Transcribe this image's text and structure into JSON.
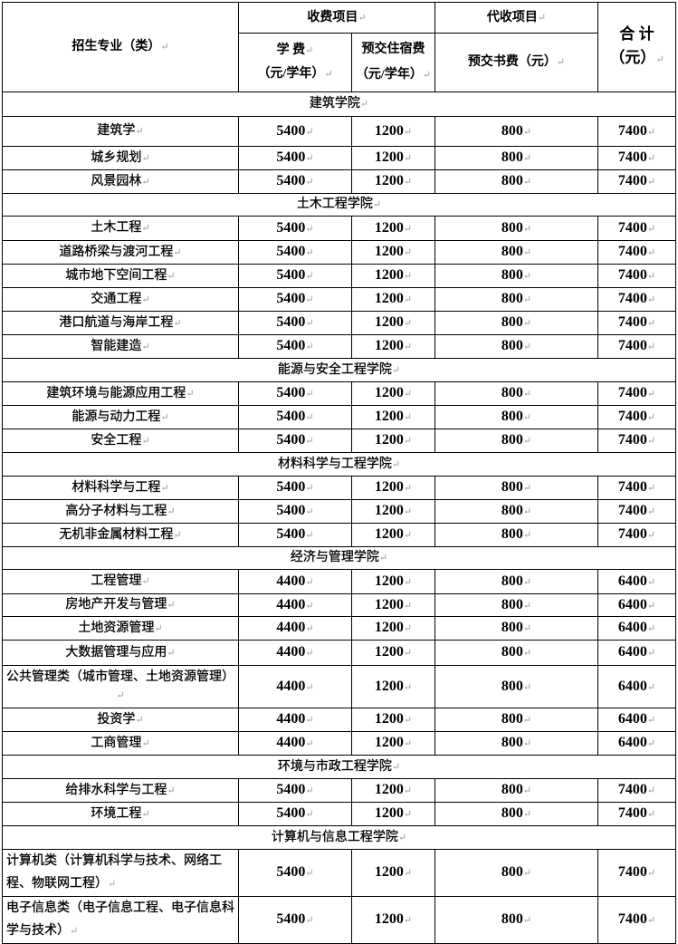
{
  "header": {
    "major": "招生专业（类）",
    "charged_group": "收费项目",
    "collected_group": "代收项目",
    "tuition": "学 费",
    "tuition_unit": "（元/学年）",
    "dorm": "预交住宿费",
    "dorm_unit": "（元/学年）",
    "books": "预交书费（元）",
    "total": "合 计",
    "total_unit": "（元）"
  },
  "sections": [
    {
      "college": "建筑学院",
      "rows": [
        {
          "major": "建筑学",
          "tuition": "5400",
          "dorm": "1200",
          "books": "800",
          "total": "7400"
        },
        {
          "major": "城乡规划",
          "tuition": "5400",
          "dorm": "1200",
          "books": "800",
          "total": "7400"
        },
        {
          "major": "风景园林",
          "tuition": "5400",
          "dorm": "1200",
          "books": "800",
          "total": "7400"
        }
      ]
    },
    {
      "college": "土木工程学院",
      "rows": [
        {
          "major": "土木工程",
          "tuition": "5400",
          "dorm": "1200",
          "books": "800",
          "total": "7400"
        },
        {
          "major": "道路桥梁与渡河工程",
          "tuition": "5400",
          "dorm": "1200",
          "books": "800",
          "total": "7400"
        },
        {
          "major": "城市地下空间工程",
          "tuition": "5400",
          "dorm": "1200",
          "books": "800",
          "total": "7400"
        },
        {
          "major": "交通工程",
          "tuition": "5400",
          "dorm": "1200",
          "books": "800",
          "total": "7400"
        },
        {
          "major": "港口航道与海岸工程",
          "tuition": "5400",
          "dorm": "1200",
          "books": "800",
          "total": "7400"
        },
        {
          "major": "智能建造",
          "tuition": "5400",
          "dorm": "1200",
          "books": "800",
          "total": "7400"
        }
      ]
    },
    {
      "college": "能源与安全工程学院",
      "rows": [
        {
          "major": "建筑环境与能源应用工程",
          "tuition": "5400",
          "dorm": "1200",
          "books": "800",
          "total": "7400"
        },
        {
          "major": "能源与动力工程",
          "tuition": "5400",
          "dorm": "1200",
          "books": "800",
          "total": "7400"
        },
        {
          "major": "安全工程",
          "tuition": "5400",
          "dorm": "1200",
          "books": "800",
          "total": "7400"
        }
      ]
    },
    {
      "college": "材料科学与工程学院",
      "rows": [
        {
          "major": "材料科学与工程",
          "tuition": "5400",
          "dorm": "1200",
          "books": "800",
          "total": "7400"
        },
        {
          "major": "高分子材料与工程",
          "tuition": "5400",
          "dorm": "1200",
          "books": "800",
          "total": "7400"
        },
        {
          "major": "无机非金属材料工程",
          "tuition": "5400",
          "dorm": "1200",
          "books": "800",
          "total": "7400"
        }
      ]
    },
    {
      "college": "经济与管理学院",
      "rows": [
        {
          "major": "工程管理",
          "tuition": "4400",
          "dorm": "1200",
          "books": "800",
          "total": "6400"
        },
        {
          "major": "房地产开发与管理",
          "tuition": "4400",
          "dorm": "1200",
          "books": "800",
          "total": "6400"
        },
        {
          "major": "土地资源管理",
          "tuition": "4400",
          "dorm": "1200",
          "books": "800",
          "total": "6400"
        },
        {
          "major": "大数据管理与应用",
          "tuition": "4400",
          "dorm": "1200",
          "books": "800",
          "total": "6400"
        },
        {
          "major": "公共管理类（城市管理、土地资源管理）",
          "tuition": "4400",
          "dorm": "1200",
          "books": "800",
          "total": "6400"
        },
        {
          "major": "投资学",
          "tuition": "4400",
          "dorm": "1200",
          "books": "800",
          "total": "6400"
        },
        {
          "major": "工商管理",
          "tuition": "4400",
          "dorm": "1200",
          "books": "800",
          "total": "6400"
        }
      ]
    },
    {
      "college": "环境与市政工程学院",
      "rows": [
        {
          "major": "给排水科学与工程",
          "tuition": "5400",
          "dorm": "1200",
          "books": "800",
          "total": "7400"
        },
        {
          "major": "环境工程",
          "tuition": "5400",
          "dorm": "1200",
          "books": "800",
          "total": "7400"
        }
      ]
    },
    {
      "college": "计算机与信息工程学院",
      "rows": [
        {
          "major": "计算机类（计算机科学与技术、网络工程、物联网工程）",
          "tuition": "5400",
          "dorm": "1200",
          "books": "800",
          "total": "7400"
        },
        {
          "major": "电子信息类（电子信息工程、电子信息科学与技术）",
          "tuition": "5400",
          "dorm": "1200",
          "books": "800",
          "total": "7400"
        }
      ]
    }
  ]
}
